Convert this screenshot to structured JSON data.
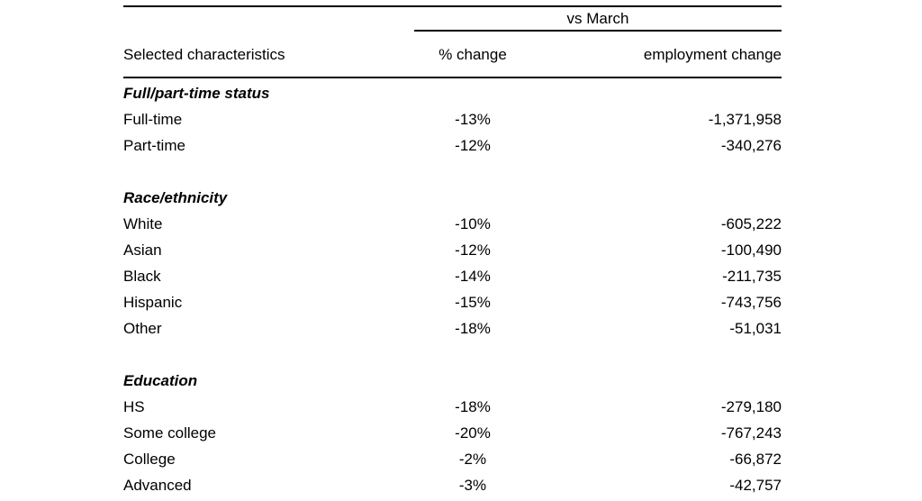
{
  "chart_data": {
    "type": "table",
    "group_header": "vs March",
    "columns": [
      "Selected characteristics",
      "% change",
      "employment change"
    ],
    "sections": [
      {
        "label": "Full/part-time status",
        "rows": [
          {
            "label": "Full-time",
            "pct_change": "-13%",
            "employment_change": "-1,371,958"
          },
          {
            "label": "Part-time",
            "pct_change": "-12%",
            "employment_change": "-340,276"
          }
        ]
      },
      {
        "label": "Race/ethnicity",
        "rows": [
          {
            "label": "White",
            "pct_change": "-10%",
            "employment_change": "-605,222"
          },
          {
            "label": "Asian",
            "pct_change": "-12%",
            "employment_change": "-100,490"
          },
          {
            "label": "Black",
            "pct_change": "-14%",
            "employment_change": "-211,735"
          },
          {
            "label": "Hispanic",
            "pct_change": "-15%",
            "employment_change": "-743,756"
          },
          {
            "label": "Other",
            "pct_change": "-18%",
            "employment_change": "-51,031"
          }
        ]
      },
      {
        "label": "Education",
        "rows": [
          {
            "label": "HS",
            "pct_change": "-18%",
            "employment_change": "-279,180"
          },
          {
            "label": "Some college",
            "pct_change": "-20%",
            "employment_change": "-767,243"
          },
          {
            "label": "College",
            "pct_change": "-2%",
            "employment_change": "-66,872"
          },
          {
            "label": "Advanced",
            "pct_change": "-3%",
            "employment_change": "-42,757"
          }
        ]
      }
    ],
    "colors": {
      "text": "#000000",
      "rule": "#000000",
      "background": "#ffffff"
    }
  }
}
